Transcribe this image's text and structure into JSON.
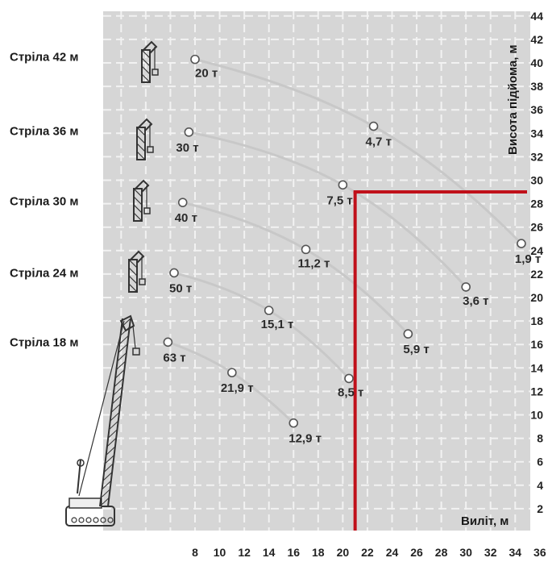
{
  "chart_data": {
    "type": "line",
    "xlabel": "Виліт, м",
    "ylabel": "Висота підйома, м",
    "xlim": [
      6,
      36
    ],
    "ylim": [
      0,
      44
    ],
    "x_ticks": [
      8,
      10,
      12,
      14,
      16,
      18,
      20,
      22,
      24,
      26,
      28,
      30,
      32,
      34,
      36
    ],
    "y_ticks": [
      2,
      4,
      6,
      8,
      10,
      12,
      14,
      16,
      18,
      20,
      22,
      24,
      26,
      28,
      30,
      32,
      34,
      36,
      38,
      40,
      42,
      44
    ],
    "grid": true,
    "series": [
      {
        "name": "Стріла 42 м",
        "boom_height": 40.5,
        "points": [
          {
            "x": 8.0,
            "y": 40.3,
            "label": "20 т"
          },
          {
            "x": 22.5,
            "y": 34.6,
            "label": "4,7 т"
          },
          {
            "x": 34.5,
            "y": 24.6,
            "label": "1,9 т"
          }
        ]
      },
      {
        "name": "Стріла 36 м",
        "boom_height": 34.2,
        "points": [
          {
            "x": 7.5,
            "y": 34.1,
            "label": "30 т"
          },
          {
            "x": 20.0,
            "y": 29.6,
            "label": "7,5 т"
          },
          {
            "x": 30.0,
            "y": 20.9,
            "label": "3,6 т"
          }
        ]
      },
      {
        "name": "Стріла 30 м",
        "boom_height": 28.2,
        "points": [
          {
            "x": 7.0,
            "y": 28.1,
            "label": "40 т"
          },
          {
            "x": 17.0,
            "y": 24.1,
            "label": "11,2 т"
          },
          {
            "x": 25.3,
            "y": 16.9,
            "label": "5,9 т"
          }
        ]
      },
      {
        "name": "Стріла 24 м",
        "boom_height": 22.1,
        "points": [
          {
            "x": 6.3,
            "y": 22.1,
            "label": "50 т"
          },
          {
            "x": 14.0,
            "y": 18.9,
            "label": "15,1 т"
          },
          {
            "x": 20.5,
            "y": 13.1,
            "label": "8,5 т"
          }
        ]
      },
      {
        "name": "Стріла 18 м",
        "boom_height": 16.2,
        "points": [
          {
            "x": 5.8,
            "y": 16.2,
            "label": "63 т"
          },
          {
            "x": 11.0,
            "y": 13.6,
            "label": "21,9 т"
          },
          {
            "x": 16.0,
            "y": 9.3,
            "label": "12,9 т"
          }
        ]
      }
    ],
    "highlight": {
      "x": 21.0,
      "y": 29.0,
      "color": "#c0101a"
    },
    "colors": {
      "background": "#ffffff",
      "plot_bg": "#d6d6d6",
      "grid": "#f2f2f2",
      "curve": "#c8c8c8",
      "marker": "#555555",
      "crane": "#333333"
    }
  }
}
